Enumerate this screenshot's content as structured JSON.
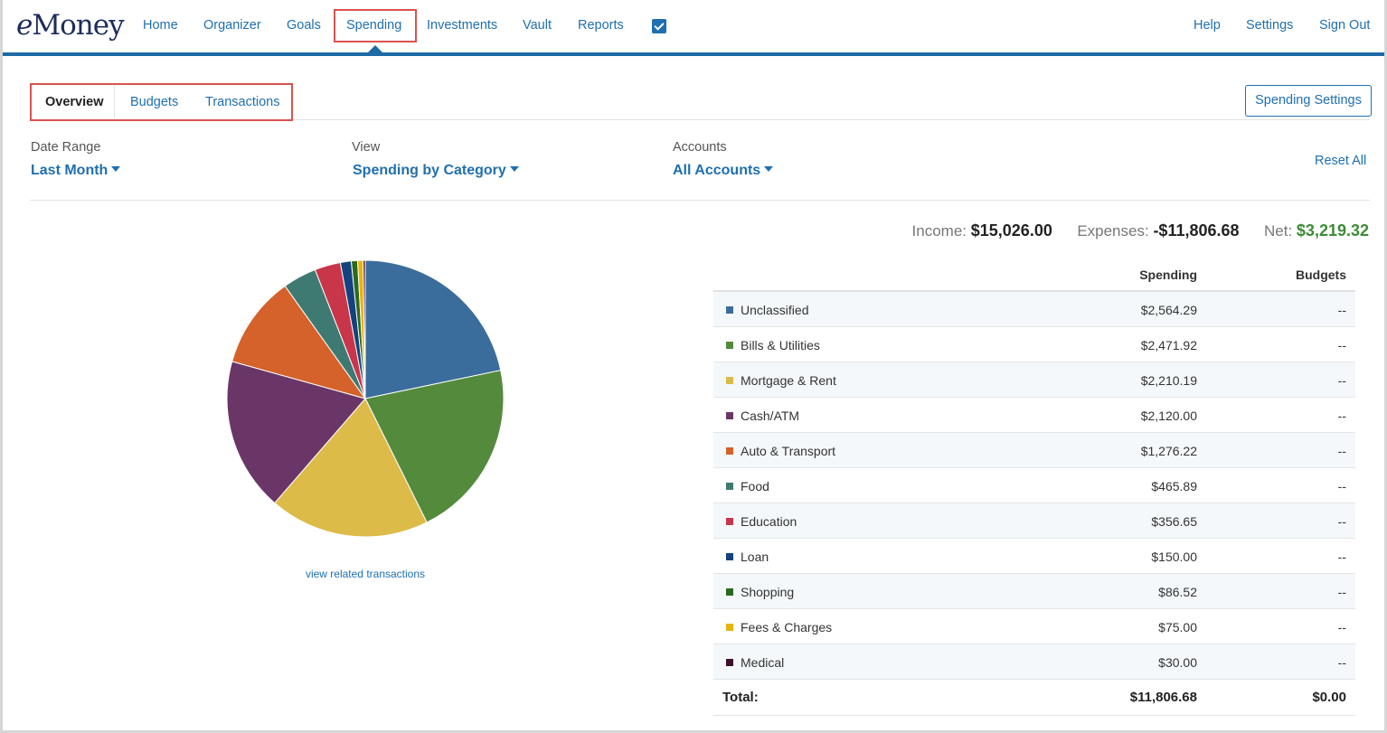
{
  "app": {
    "logo_e": "e",
    "logo_rest": "Money"
  },
  "nav": {
    "items": [
      "Home",
      "Organizer",
      "Goals",
      "Spending",
      "Investments",
      "Vault",
      "Reports"
    ],
    "right": [
      "Help",
      "Settings",
      "Sign Out"
    ],
    "active": "Spending",
    "icon": "checkbox-icon"
  },
  "subtabs": {
    "items": [
      "Overview",
      "Budgets",
      "Transactions"
    ],
    "active": "Overview",
    "settings_button": "Spending Settings"
  },
  "filters": {
    "date_range": {
      "label": "Date Range",
      "value": "Last Month"
    },
    "view": {
      "label": "View",
      "value": "Spending by Category"
    },
    "accounts": {
      "label": "Accounts",
      "value": "All Accounts"
    },
    "reset": "Reset All"
  },
  "summary": {
    "income_label": "Income:",
    "income": "$15,026.00",
    "expenses_label": "Expenses:",
    "expenses": "-$11,806.68",
    "net_label": "Net:",
    "net": "$3,219.32"
  },
  "chart_data": {
    "type": "pie",
    "values": [
      2564.29,
      2471.92,
      2210.19,
      2120.0,
      1276.22,
      465.89,
      356.65,
      150.0,
      86.52,
      75.0,
      30.0
    ],
    "categories": [
      "Unclassified",
      "Bills & Utilities",
      "Mortgage & Rent",
      "Cash/ATM",
      "Auto & Transport",
      "Food",
      "Education",
      "Loan",
      "Shopping",
      "Fees & Charges",
      "Medical"
    ],
    "colors": [
      "#3b6d9c",
      "#548a3c",
      "#dcbb48",
      "#6a3668",
      "#d5622a",
      "#3f7a72",
      "#c9364a",
      "#14427e",
      "#2a6a1e",
      "#e8b311",
      "#3f0f2e"
    ]
  },
  "view_related": "view related transactions",
  "table": {
    "headers": {
      "spending": "Spending",
      "budgets": "Budgets"
    },
    "rows": [
      {
        "category": "Unclassified",
        "amount": "$2,564.29",
        "budget": "--"
      },
      {
        "category": "Bills & Utilities",
        "amount": "$2,471.92",
        "budget": "--"
      },
      {
        "category": "Mortgage & Rent",
        "amount": "$2,210.19",
        "budget": "--"
      },
      {
        "category": "Cash/ATM",
        "amount": "$2,120.00",
        "budget": "--"
      },
      {
        "category": "Auto & Transport",
        "amount": "$1,276.22",
        "budget": "--"
      },
      {
        "category": "Food",
        "amount": "$465.89",
        "budget": "--"
      },
      {
        "category": "Education",
        "amount": "$356.65",
        "budget": "--"
      },
      {
        "category": "Loan",
        "amount": "$150.00",
        "budget": "--"
      },
      {
        "category": "Shopping",
        "amount": "$86.52",
        "budget": "--"
      },
      {
        "category": "Fees & Charges",
        "amount": "$75.00",
        "budget": "--"
      },
      {
        "category": "Medical",
        "amount": "$30.00",
        "budget": "--"
      }
    ],
    "total": {
      "label": "Total:",
      "amount": "$11,806.68",
      "budget": "$0.00"
    }
  }
}
